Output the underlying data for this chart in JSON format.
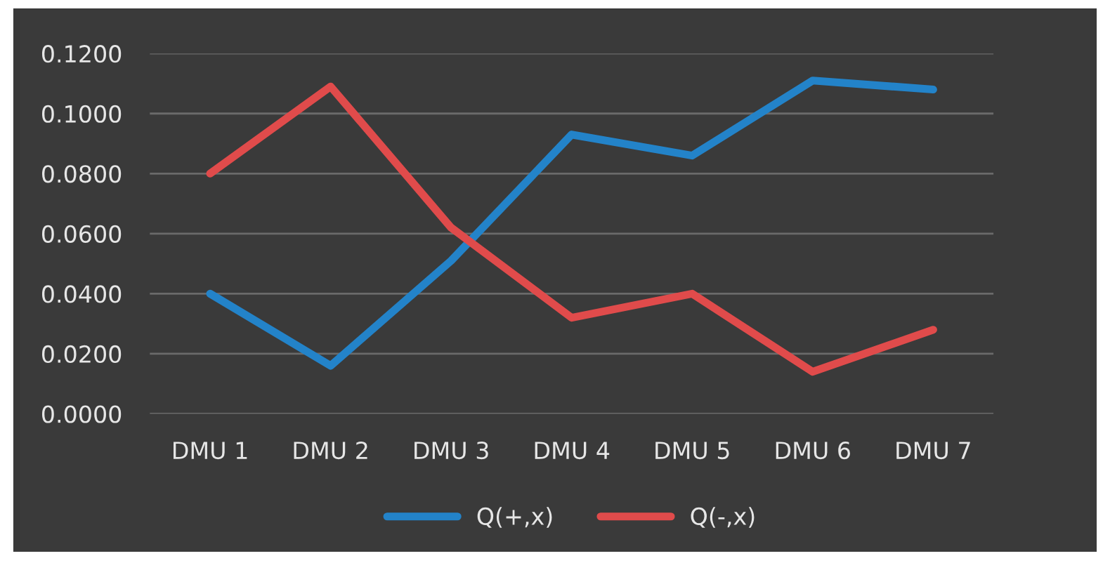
{
  "chart_data": {
    "type": "line",
    "categories": [
      "DMU 1",
      "DMU 2",
      "DMU 3",
      "DMU 4",
      "DMU 5",
      "DMU 6",
      "DMU 7"
    ],
    "series": [
      {
        "name": "Q(+,x)",
        "color": "#2383c9",
        "values": [
          0.04,
          0.016,
          0.051,
          0.093,
          0.086,
          0.111,
          0.108
        ]
      },
      {
        "name": "Q(-,x)",
        "color": "#e04b4b",
        "values": [
          0.08,
          0.109,
          0.062,
          0.032,
          0.04,
          0.014,
          0.028
        ]
      }
    ],
    "ylim": [
      0,
      0.12
    ],
    "yticks": [
      {
        "value": 0,
        "label": "0.0000"
      },
      {
        "value": 0.02,
        "label": "0.0200"
      },
      {
        "value": 0.04,
        "label": "0.0400"
      },
      {
        "value": 0.06,
        "label": "0.0600"
      },
      {
        "value": 0.08,
        "label": "0.0800"
      },
      {
        "value": 0.1,
        "label": "0.1000"
      },
      {
        "value": 0.12,
        "label": "0.1200"
      }
    ],
    "grid": "y",
    "legend": "bottom",
    "marker": "none",
    "line_style": "solid"
  }
}
